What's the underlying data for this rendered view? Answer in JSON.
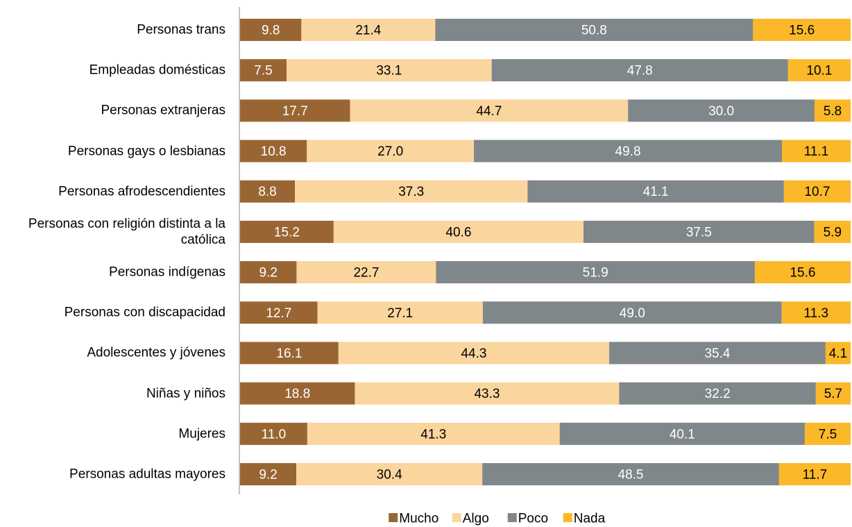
{
  "chart_data": {
    "type": "stacked_bar_horizontal_percent",
    "categories": [
      "Personas trans",
      "Empleadas domésticas",
      "Personas extranjeras",
      "Personas gays o lesbianas",
      "Personas afrodescendientes",
      "Personas con religión distinta a la católica",
      "Personas indígenas",
      "Personas con discapacidad",
      "Adolescentes y jóvenes",
      "Niñas y niños",
      "Mujeres",
      "Personas adultas mayores"
    ],
    "series": [
      {
        "name": "Mucho",
        "color": "#996633",
        "label_color": "#ffffff",
        "values": [
          9.8,
          7.5,
          17.7,
          10.8,
          8.8,
          15.2,
          9.2,
          12.7,
          16.1,
          18.8,
          11.0,
          9.2
        ],
        "value_labels": [
          "9.8",
          "7.5",
          "17.7",
          "10.8",
          "8.8",
          "15.2",
          "9.2",
          "12.7",
          "16.1",
          "18.8",
          "11.0",
          "9.2"
        ]
      },
      {
        "name": "Algo",
        "color": "#fad59e",
        "label_color": "#000000",
        "values": [
          21.4,
          33.1,
          44.7,
          27.0,
          37.3,
          40.6,
          22.7,
          27.1,
          44.3,
          43.3,
          41.3,
          30.4
        ],
        "value_labels": [
          "21.4",
          "33.1",
          "44.7",
          "27.0",
          "37.3",
          "40.6",
          "22.7",
          "27.1",
          "44.3",
          "43.3",
          "41.3",
          "30.4"
        ]
      },
      {
        "name": "Poco",
        "color": "#7f878a",
        "label_color": "#ffffff",
        "values": [
          50.8,
          47.8,
          30.0,
          49.8,
          41.1,
          37.5,
          51.9,
          49.0,
          35.4,
          32.2,
          40.1,
          48.5
        ],
        "value_labels": [
          "50.8",
          "47.8",
          "30.0",
          "49.8",
          "41.1",
          "37.5",
          "51.9",
          "49.0",
          "35.4",
          "32.2",
          "40.1",
          "48.5"
        ]
      },
      {
        "name": "Nada",
        "color": "#fbb829",
        "label_color": "#000000",
        "values": [
          15.6,
          10.1,
          5.8,
          11.1,
          10.7,
          5.9,
          15.6,
          11.3,
          4.1,
          5.7,
          7.5,
          11.7
        ],
        "value_labels": [
          "15.6",
          "10.1",
          "5.8",
          "11.1",
          "10.7",
          "5.9",
          "15.6",
          "11.3",
          "4.1",
          "5.7",
          "7.5",
          "11.7"
        ]
      }
    ],
    "legend": "bottom"
  }
}
